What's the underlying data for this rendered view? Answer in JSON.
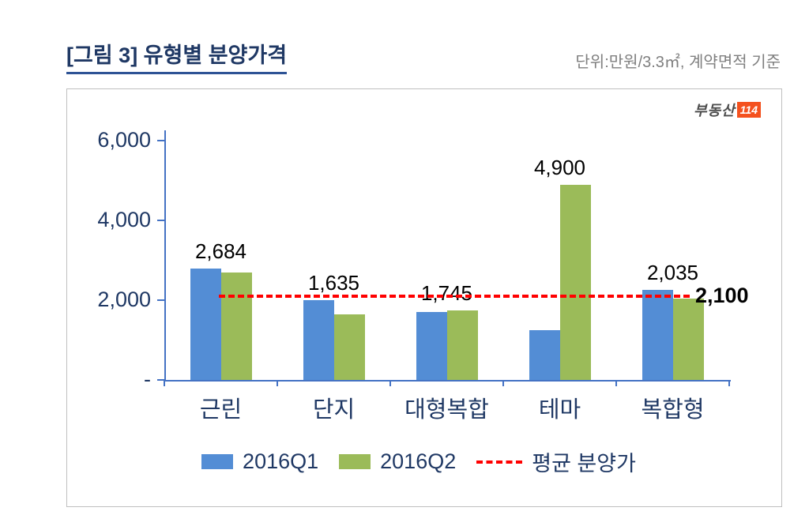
{
  "header": {
    "title": "[그림 3] 유형별 분양가격",
    "subtitle": "단위:만원/3.3㎡, 계약면적 기준"
  },
  "logo": {
    "text": "부동산",
    "badge": "114"
  },
  "chart_data": {
    "type": "bar",
    "title": "[그림 3] 유형별 분양가격",
    "unit_note": "단위:만원/3.3㎡, 계약면적 기준",
    "categories": [
      "근린",
      "단지",
      "대형복합",
      "테마",
      "복합형"
    ],
    "series": [
      {
        "name": "2016Q1",
        "color": "#538DD5",
        "values": [
          2800,
          2000,
          1700,
          1250,
          2250
        ]
      },
      {
        "name": "2016Q2",
        "color": "#9BBB59",
        "values": [
          2684,
          1635,
          1745,
          4900,
          2035
        ]
      }
    ],
    "labels": [
      "2,684",
      "1,635",
      "1,745",
      "4,900",
      "2,035"
    ],
    "avg_line": {
      "value": 2100,
      "label": "2,100",
      "name": "평균 분양가",
      "color": "#FF0000"
    },
    "ylim": [
      0,
      6000
    ],
    "yticks": [
      {
        "value": 0,
        "label": "-"
      },
      {
        "value": 2000,
        "label": "2,000"
      },
      {
        "value": 4000,
        "label": "4,000"
      },
      {
        "value": 6000,
        "label": "6,000"
      }
    ],
    "grid": false,
    "legend_position": "bottom"
  }
}
